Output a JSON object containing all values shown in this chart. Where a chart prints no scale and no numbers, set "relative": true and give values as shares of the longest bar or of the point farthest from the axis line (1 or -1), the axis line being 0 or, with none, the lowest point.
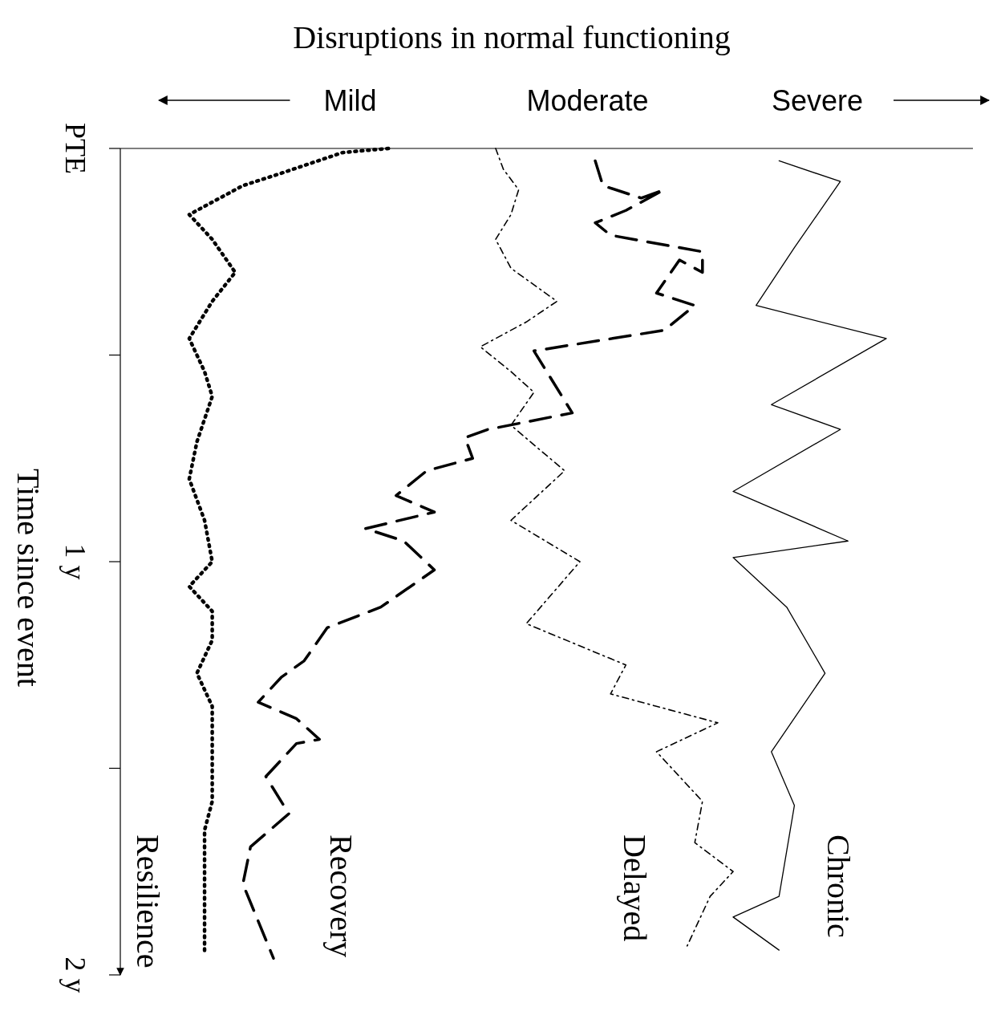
{
  "chart_data": {
    "type": "line",
    "title": "Disruptions in normal functioning",
    "ylabel": "Time since event",
    "orientation": "horizontal",
    "relative": true,
    "legend": false,
    "grid": false,
    "marker": "none",
    "annotations": [
      "Mild",
      "Moderate",
      "Severe"
    ],
    "ylim": [
      2,
      0
    ],
    "yticks": [
      {
        "value": 0,
        "label": "PTE"
      },
      {
        "value": 0.5,
        "label": null
      },
      {
        "value": 1,
        "label": "1 y"
      },
      {
        "value": 1.5,
        "label": null
      },
      {
        "value": 2,
        "label": "2 y"
      }
    ],
    "series": [
      {
        "name": "Resilience",
        "color": "#000000",
        "line_style": "dotted",
        "x": [
          0,
          0.01,
          0.06,
          0.09,
          0.16,
          0.22,
          0.3,
          0.37,
          0.46,
          0.54,
          0.6,
          0.71,
          0.8,
          0.9,
          1.0,
          1.06,
          1.12,
          1.19,
          1.27,
          1.35,
          1.42,
          1.5,
          1.58,
          1.65,
          1.73,
          1.82,
          1.95
        ],
        "values": [
          0.35,
          0.29,
          0.21,
          0.16,
          0.09,
          0.12,
          0.15,
          0.12,
          0.09,
          0.11,
          0.12,
          0.1,
          0.09,
          0.11,
          0.12,
          0.09,
          0.12,
          0.12,
          0.1,
          0.12,
          0.12,
          0.12,
          0.12,
          0.11,
          0.11,
          0.11,
          0.11
        ]
      },
      {
        "name": "Recovery",
        "color": "#000000",
        "line_style": "dashed",
        "x": [
          0.03,
          0.09,
          0.12,
          0.1,
          0.15,
          0.18,
          0.21,
          0.25,
          0.3,
          0.27,
          0.35,
          0.38,
          0.44,
          0.49,
          0.64,
          0.68,
          0.7,
          0.75,
          0.78,
          0.84,
          0.88,
          0.92,
          0.95,
          1.02,
          1.11,
          1.16,
          1.24,
          1.28,
          1.34,
          1.38,
          1.43,
          1.44,
          1.52,
          1.61,
          1.69,
          1.78,
          1.96
        ],
        "values": [
          0.62,
          0.63,
          0.68,
          0.71,
          0.66,
          0.62,
          0.64,
          0.76,
          0.76,
          0.73,
          0.7,
          0.75,
          0.71,
          0.54,
          0.59,
          0.48,
          0.45,
          0.46,
          0.4,
          0.36,
          0.41,
          0.32,
          0.37,
          0.41,
          0.34,
          0.27,
          0.24,
          0.21,
          0.18,
          0.23,
          0.26,
          0.23,
          0.19,
          0.22,
          0.17,
          0.16,
          0.2
        ]
      },
      {
        "name": "Delayed",
        "color": "#000000",
        "line_style": "dashdot",
        "x": [
          0,
          0.05,
          0.1,
          0.16,
          0.22,
          0.29,
          0.37,
          0.42,
          0.48,
          0.54,
          0.59,
          0.67,
          0.78,
          0.9,
          1.0,
          1.15,
          1.25,
          1.32,
          1.39,
          1.46,
          1.58,
          1.68,
          1.75,
          1.81,
          1.93
        ],
        "values": [
          0.49,
          0.5,
          0.52,
          0.51,
          0.49,
          0.51,
          0.57,
          0.53,
          0.47,
          0.51,
          0.54,
          0.51,
          0.58,
          0.51,
          0.6,
          0.53,
          0.66,
          0.64,
          0.78,
          0.7,
          0.76,
          0.75,
          0.8,
          0.77,
          0.74
        ]
      },
      {
        "name": "Chronic",
        "color": "#000000",
        "line_style": "solid",
        "x": [
          0.03,
          0.08,
          0.24,
          0.38,
          0.46,
          0.62,
          0.68,
          0.83,
          0.95,
          0.99,
          1.11,
          1.27,
          1.46,
          1.59,
          1.81,
          1.86,
          1.94
        ],
        "values": [
          0.86,
          0.94,
          0.88,
          0.83,
          1.0,
          0.85,
          0.94,
          0.8,
          0.95,
          0.8,
          0.87,
          0.92,
          0.85,
          0.88,
          0.86,
          0.8,
          0.86
        ]
      }
    ]
  }
}
